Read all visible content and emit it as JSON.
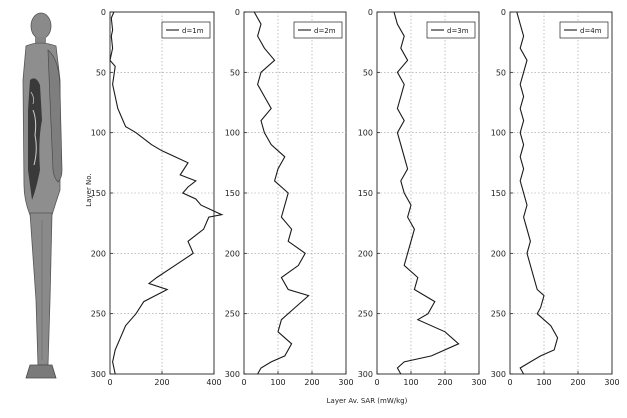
{
  "chart_data": {
    "type": "line",
    "xlabel": "Layer Av. SAR (mW/kg)",
    "ylabel": "Layer No.",
    "panels": [
      {
        "legend": "d=1m",
        "xlim": [
          0,
          400
        ],
        "xticks": [
          0,
          200,
          400
        ],
        "ylim": [
          0,
          300
        ],
        "yticks": [
          0,
          50,
          100,
          150,
          200,
          250,
          300
        ],
        "grid": true,
        "legend_position": "top-right",
        "points": [
          [
            15,
            0
          ],
          [
            5,
            5
          ],
          [
            10,
            15
          ],
          [
            5,
            20
          ],
          [
            10,
            30
          ],
          [
            0,
            40
          ],
          [
            20,
            45
          ],
          [
            10,
            60
          ],
          [
            30,
            80
          ],
          [
            60,
            95
          ],
          [
            100,
            100
          ],
          [
            160,
            110
          ],
          [
            200,
            115
          ],
          [
            250,
            120
          ],
          [
            300,
            125
          ],
          [
            270,
            135
          ],
          [
            330,
            140
          ],
          [
            300,
            145
          ],
          [
            280,
            150
          ],
          [
            330,
            155
          ],
          [
            350,
            160
          ],
          [
            400,
            165
          ],
          [
            430,
            168
          ],
          [
            380,
            170
          ],
          [
            360,
            180
          ],
          [
            300,
            190
          ],
          [
            320,
            200
          ],
          [
            250,
            210
          ],
          [
            180,
            220
          ],
          [
            150,
            225
          ],
          [
            220,
            230
          ],
          [
            130,
            240
          ],
          [
            100,
            250
          ],
          [
            60,
            260
          ],
          [
            40,
            270
          ],
          [
            20,
            280
          ],
          [
            10,
            290
          ],
          [
            20,
            300
          ]
        ]
      },
      {
        "legend": "d=2m",
        "xlim": [
          0,
          300
        ],
        "xticks": [
          0,
          100,
          200,
          300
        ],
        "ylim": [
          0,
          300
        ],
        "yticks": [
          0,
          50,
          100,
          150,
          200,
          250,
          300
        ],
        "grid": true,
        "legend_position": "top-right",
        "points": [
          [
            30,
            0
          ],
          [
            50,
            10
          ],
          [
            40,
            20
          ],
          [
            60,
            30
          ],
          [
            90,
            40
          ],
          [
            50,
            50
          ],
          [
            40,
            60
          ],
          [
            60,
            70
          ],
          [
            80,
            80
          ],
          [
            50,
            90
          ],
          [
            60,
            100
          ],
          [
            80,
            110
          ],
          [
            120,
            120
          ],
          [
            100,
            130
          ],
          [
            90,
            140
          ],
          [
            130,
            150
          ],
          [
            120,
            160
          ],
          [
            110,
            170
          ],
          [
            140,
            180
          ],
          [
            130,
            190
          ],
          [
            180,
            200
          ],
          [
            160,
            210
          ],
          [
            110,
            220
          ],
          [
            130,
            230
          ],
          [
            190,
            235
          ],
          [
            150,
            245
          ],
          [
            110,
            255
          ],
          [
            100,
            265
          ],
          [
            140,
            275
          ],
          [
            120,
            285
          ],
          [
            80,
            290
          ],
          [
            50,
            295
          ],
          [
            40,
            300
          ]
        ]
      },
      {
        "legend": "d=3m",
        "xlim": [
          0,
          300
        ],
        "xticks": [
          0,
          100,
          200,
          300
        ],
        "ylim": [
          0,
          300
        ],
        "yticks": [
          0,
          50,
          100,
          150,
          200,
          250,
          300
        ],
        "grid": true,
        "legend_position": "top-right",
        "points": [
          [
            50,
            0
          ],
          [
            60,
            10
          ],
          [
            80,
            20
          ],
          [
            70,
            30
          ],
          [
            90,
            40
          ],
          [
            60,
            50
          ],
          [
            80,
            60
          ],
          [
            70,
            70
          ],
          [
            60,
            80
          ],
          [
            80,
            90
          ],
          [
            60,
            100
          ],
          [
            70,
            110
          ],
          [
            80,
            120
          ],
          [
            90,
            130
          ],
          [
            70,
            140
          ],
          [
            80,
            150
          ],
          [
            100,
            160
          ],
          [
            90,
            170
          ],
          [
            110,
            180
          ],
          [
            100,
            190
          ],
          [
            90,
            200
          ],
          [
            80,
            210
          ],
          [
            120,
            220
          ],
          [
            110,
            230
          ],
          [
            170,
            240
          ],
          [
            150,
            250
          ],
          [
            120,
            255
          ],
          [
            200,
            265
          ],
          [
            240,
            275
          ],
          [
            160,
            285
          ],
          [
            80,
            290
          ],
          [
            60,
            295
          ],
          [
            70,
            300
          ]
        ]
      },
      {
        "legend": "d=4m",
        "xlim": [
          0,
          300
        ],
        "xticks": [
          0,
          100,
          200,
          300
        ],
        "ylim": [
          0,
          300
        ],
        "yticks": [
          0,
          50,
          100,
          150,
          200,
          250,
          300
        ],
        "grid": true,
        "legend_position": "top-right",
        "points": [
          [
            20,
            0
          ],
          [
            30,
            10
          ],
          [
            40,
            20
          ],
          [
            30,
            30
          ],
          [
            50,
            40
          ],
          [
            40,
            50
          ],
          [
            30,
            60
          ],
          [
            40,
            70
          ],
          [
            30,
            80
          ],
          [
            40,
            90
          ],
          [
            30,
            100
          ],
          [
            40,
            110
          ],
          [
            30,
            120
          ],
          [
            40,
            130
          ],
          [
            30,
            140
          ],
          [
            40,
            150
          ],
          [
            50,
            160
          ],
          [
            40,
            170
          ],
          [
            50,
            180
          ],
          [
            60,
            190
          ],
          [
            50,
            200
          ],
          [
            60,
            210
          ],
          [
            70,
            220
          ],
          [
            80,
            230
          ],
          [
            100,
            235
          ],
          [
            90,
            245
          ],
          [
            80,
            250
          ],
          [
            120,
            260
          ],
          [
            140,
            270
          ],
          [
            130,
            280
          ],
          [
            90,
            285
          ],
          [
            60,
            290
          ],
          [
            30,
            295
          ],
          [
            40,
            300
          ]
        ]
      }
    ]
  }
}
